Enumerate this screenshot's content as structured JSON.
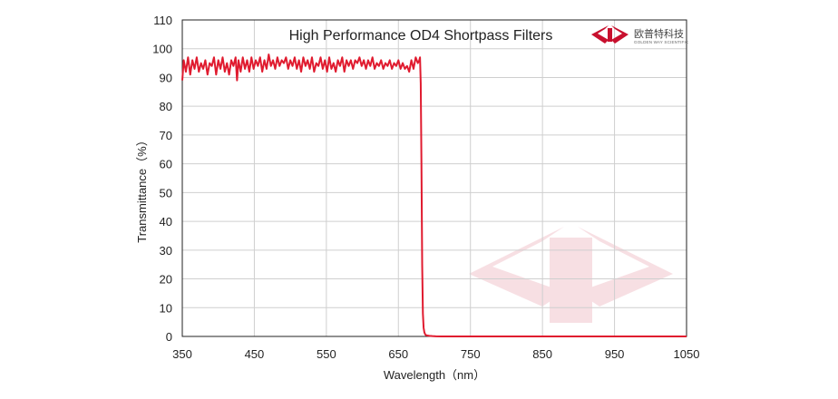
{
  "chart_data": {
    "type": "line",
    "title": "High Performance OD4 Shortpass  Filters",
    "xlabel": "Wavelength（nm）",
    "ylabel": "Transmittance（%）",
    "xlim": [
      350,
      1050
    ],
    "ylim": [
      0,
      110
    ],
    "x_ticks": [
      "350",
      "450",
      "550",
      "650",
      "750",
      "850",
      "950",
      "1050"
    ],
    "y_ticks": [
      "0",
      "10",
      "20",
      "30",
      "40",
      "50",
      "60",
      "70",
      "80",
      "90",
      "100",
      "110"
    ],
    "grid": true,
    "line_color": "#e01b2f",
    "series": [
      {
        "x": [
          350,
          352,
          355,
          358,
          361,
          364,
          367,
          370,
          373,
          376,
          379,
          382,
          385,
          388,
          391,
          394,
          397,
          400,
          403,
          406,
          409,
          412,
          415,
          418,
          421,
          424,
          426,
          428,
          431,
          434,
          437,
          440,
          443,
          446,
          449,
          452,
          455,
          458,
          461,
          464,
          467,
          470,
          473,
          476,
          479,
          482,
          485,
          488,
          491,
          494,
          497,
          500,
          503,
          506,
          509,
          512,
          515,
          518,
          521,
          524,
          527,
          530,
          533,
          536,
          539,
          542,
          545,
          548,
          551,
          554,
          557,
          560,
          563,
          566,
          569,
          572,
          575,
          578,
          581,
          584,
          587,
          590,
          593,
          596,
          599,
          602,
          605,
          608,
          611,
          614,
          617,
          620,
          623,
          626,
          629,
          632,
          635,
          638,
          641,
          644,
          647,
          650,
          653,
          656,
          659,
          662,
          665,
          668,
          671,
          674,
          677,
          679,
          680,
          681,
          682,
          683,
          684,
          685,
          686,
          687,
          688,
          690,
          693,
          697,
          702,
          710,
          750,
          850,
          950,
          1050
        ],
        "y": [
          89,
          96,
          92,
          97,
          91,
          96,
          93,
          97,
          92,
          95,
          93,
          96,
          91,
          95,
          94,
          97,
          91,
          96,
          93,
          97,
          92,
          95,
          91,
          96,
          94,
          97,
          89,
          96,
          92,
          97,
          93,
          96,
          92,
          97,
          93,
          96,
          94,
          97,
          92,
          96,
          93,
          98,
          94,
          96,
          93,
          97,
          94,
          96,
          95,
          97,
          93,
          96,
          94,
          97,
          93,
          96,
          92,
          97,
          94,
          96,
          93,
          97,
          92,
          95,
          94,
          97,
          93,
          96,
          92,
          97,
          93,
          95,
          92,
          96,
          94,
          97,
          92,
          96,
          94,
          96,
          93,
          96,
          95,
          97,
          94,
          96,
          93,
          96,
          94,
          97,
          93,
          95,
          94,
          96,
          93,
          95,
          94,
          96,
          93,
          95,
          94,
          96,
          93,
          95,
          93,
          94,
          92,
          96,
          93,
          97,
          95,
          96,
          97,
          88,
          60,
          25,
          8,
          3,
          1.5,
          0.8,
          0.5,
          0.3,
          0.2,
          0.1,
          0.05,
          0.02,
          0,
          0,
          0,
          0
        ]
      }
    ]
  },
  "brand": {
    "name_cn": "欧普特科技",
    "name_en": "GOLDEN WAY SCIENTIFIC",
    "logo_color": "#c8102e"
  }
}
